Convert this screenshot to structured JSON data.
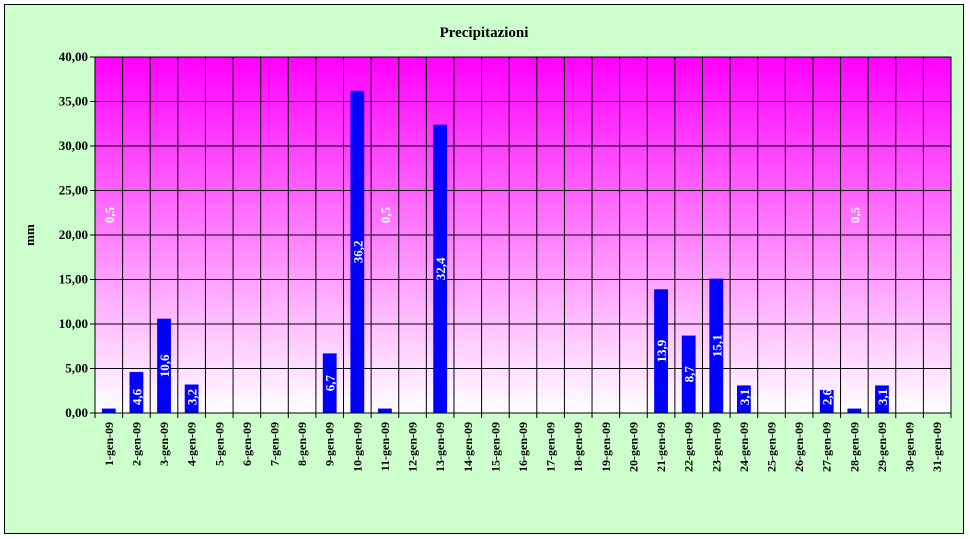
{
  "chart_data": {
    "type": "bar",
    "title": "Precipitazioni",
    "xlabel": "",
    "ylabel": "mm",
    "ylim": [
      0,
      40
    ],
    "y_tick_labels": [
      "0,00",
      "5,00",
      "10,00",
      "15,00",
      "20,00",
      "25,00",
      "30,00",
      "35,00",
      "40,00"
    ],
    "categories": [
      "1-gen-09",
      "2-gen-09",
      "3-gen-09",
      "4-gen-09",
      "5-gen-09",
      "6-gen-09",
      "7-gen-09",
      "8-gen-09",
      "9-gen-09",
      "10-gen-09",
      "11-gen-09",
      "12-gen-09",
      "13-gen-09",
      "14-gen-09",
      "15-gen-09",
      "16-gen-09",
      "17-gen-09",
      "18-gen-09",
      "19-gen-09",
      "20-gen-09",
      "21-gen-09",
      "22-gen-09",
      "23-gen-09",
      "24-gen-09",
      "25-gen-09",
      "26-gen-09",
      "27-gen-09",
      "28-gen-09",
      "29-gen-09",
      "30-gen-09",
      "31-gen-09"
    ],
    "values": [
      0.5,
      4.6,
      10.6,
      3.2,
      0,
      0,
      0,
      0,
      6.7,
      36.2,
      0.5,
      0,
      32.4,
      0,
      0,
      0,
      0,
      0,
      0,
      0,
      13.9,
      8.7,
      15.1,
      3.1,
      0,
      0,
      2.6,
      0.5,
      3.1,
      0,
      0
    ],
    "data_labels": [
      "0,5",
      "4,6",
      "10,6",
      "3,2",
      "",
      "",
      "",
      "",
      "6,7",
      "36,2",
      "0,5",
      "",
      "32,4",
      "",
      "",
      "",
      "",
      "",
      "",
      "",
      "13,9",
      "8,7",
      "15,1",
      "3,1",
      "",
      "",
      "2,6",
      "0,5",
      "3,1",
      "",
      ""
    ],
    "grid": true,
    "legend": "none",
    "colors": {
      "bar": "#0000ff",
      "plot_top": "#ff00ff",
      "plot_bottom": "#ffffff",
      "chart_bg": "#ccffcc",
      "label": "#ffffff"
    }
  }
}
